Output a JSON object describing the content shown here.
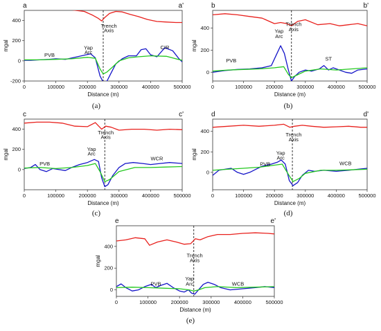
{
  "chart_data": [
    {
      "type": "line",
      "caption": "(a)",
      "profile_start": "a",
      "profile_end": "a'",
      "xlabel": "Distance (m)",
      "ylabel": "mgal",
      "xlim": [
        0,
        500000
      ],
      "ylim": [
        -200,
        500
      ],
      "xticks": [
        0,
        100000,
        200000,
        300000,
        400000,
        500000
      ],
      "yticks": [
        -200,
        0,
        200,
        400
      ],
      "trench_x": 250000,
      "series": [
        {
          "color": "#e8201c",
          "x": [
            0,
            50000,
            100000,
            150000,
            190000,
            215000,
            235000,
            245000,
            255000,
            270000,
            290000,
            310000,
            335000,
            360000,
            390000,
            420000,
            450000,
            480000,
            500000
          ],
          "y": [
            510,
            510,
            505,
            505,
            490,
            455,
            420,
            395,
            430,
            470,
            490,
            485,
            460,
            440,
            410,
            390,
            385,
            380,
            380
          ]
        },
        {
          "color": "#1414c8",
          "x": [
            0,
            20000,
            50000,
            80000,
            100000,
            130000,
            160000,
            190000,
            210000,
            225000,
            240000,
            250000,
            262000,
            275000,
            290000,
            310000,
            330000,
            355000,
            370000,
            385000,
            400000,
            420000,
            445000,
            470000,
            490000,
            500000
          ],
          "y": [
            5,
            5,
            10,
            15,
            20,
            15,
            35,
            55,
            70,
            30,
            -150,
            -210,
            -200,
            -120,
            -30,
            20,
            50,
            50,
            110,
            120,
            60,
            40,
            130,
            100,
            20,
            -10
          ]
        },
        {
          "color": "#22c81e",
          "x": [
            0,
            50000,
            100000,
            150000,
            200000,
            225000,
            240000,
            250000,
            262000,
            280000,
            300000,
            330000,
            360000,
            400000,
            450000,
            480000,
            500000
          ],
          "y": [
            10,
            10,
            15,
            20,
            35,
            25,
            -80,
            -130,
            -110,
            -60,
            0,
            30,
            40,
            50,
            45,
            20,
            5
          ]
        }
      ],
      "annotations": [
        {
          "text": "PVB",
          "x": 80000,
          "y": 40
        },
        {
          "text": "Yap",
          "x": 203000,
          "y": 112
        },
        {
          "text": "Arc",
          "x": 203000,
          "y": 68
        },
        {
          "text": "Trench",
          "x": 268000,
          "y": 330
        },
        {
          "text": "Axis",
          "x": 268000,
          "y": 285
        },
        {
          "text": "CIR",
          "x": 445000,
          "y": 115
        }
      ]
    },
    {
      "type": "line",
      "caption": "(b)",
      "profile_start": "b",
      "profile_end": "b'",
      "xlabel": "Distance (m)",
      "ylabel": "mgal",
      "xlim": [
        0,
        500000
      ],
      "ylim": [
        -80,
        560
      ],
      "xticks": [
        0,
        100000,
        200000,
        300000,
        400000,
        500000
      ],
      "yticks": [
        0,
        200,
        400
      ],
      "trench_x": 255000,
      "series": [
        {
          "color": "#e8201c",
          "x": [
            0,
            40000,
            80000,
            120000,
            160000,
            200000,
            220000,
            240000,
            255000,
            275000,
            300000,
            340000,
            380000,
            410000,
            440000,
            470000,
            500000
          ],
          "y": [
            520,
            530,
            520,
            505,
            490,
            440,
            450,
            440,
            420,
            460,
            475,
            430,
            440,
            420,
            430,
            440,
            420
          ]
        },
        {
          "color": "#1414c8",
          "x": [
            0,
            40000,
            80000,
            120000,
            160000,
            190000,
            205000,
            220000,
            232000,
            245000,
            255000,
            265000,
            280000,
            300000,
            320000,
            345000,
            360000,
            375000,
            390000,
            410000,
            430000,
            450000,
            470000,
            500000
          ],
          "y": [
            0,
            15,
            25,
            30,
            40,
            60,
            150,
            240,
            170,
            20,
            -80,
            -40,
            0,
            20,
            10,
            30,
            60,
            20,
            40,
            20,
            0,
            -10,
            20,
            30
          ]
        },
        {
          "color": "#22c81e",
          "x": [
            0,
            50000,
            100000,
            150000,
            200000,
            230000,
            245000,
            255000,
            270000,
            300000,
            350000,
            400000,
            450000,
            500000
          ],
          "y": [
            10,
            20,
            25,
            30,
            40,
            50,
            -20,
            -50,
            -30,
            10,
            30,
            20,
            30,
            40
          ]
        }
      ],
      "annotations": [
        {
          "text": "PVB",
          "x": 60000,
          "y": 90
        },
        {
          "text": "Yap",
          "x": 215000,
          "y": 355
        },
        {
          "text": "Arc",
          "x": 215000,
          "y": 310
        },
        {
          "text": "Trench",
          "x": 262000,
          "y": 418
        },
        {
          "text": "Axis",
          "x": 262000,
          "y": 373
        },
        {
          "text": "ST",
          "x": 375000,
          "y": 105
        }
      ]
    },
    {
      "type": "line",
      "caption": "(c)",
      "profile_start": "c",
      "profile_end": "c'",
      "xlabel": "Distance (m)",
      "ylabel": "mgal",
      "xlim": [
        0,
        500000
      ],
      "ylim": [
        -200,
        500
      ],
      "xticks": [
        0,
        100000,
        200000,
        300000,
        400000,
        500000
      ],
      "yticks": [
        0,
        200,
        400
      ],
      "trench_x": 255000,
      "series": [
        {
          "color": "#e8201c",
          "x": [
            0,
            40000,
            80000,
            120000,
            160000,
            200000,
            225000,
            245000,
            258000,
            275000,
            300000,
            340000,
            380000,
            420000,
            460000,
            500000
          ],
          "y": [
            460,
            470,
            470,
            460,
            430,
            425,
            465,
            400,
            430,
            420,
            390,
            400,
            400,
            390,
            400,
            395
          ]
        },
        {
          "color": "#1414c8",
          "x": [
            0,
            20000,
            35000,
            50000,
            70000,
            90000,
            110000,
            130000,
            150000,
            175000,
            200000,
            222000,
            235000,
            245000,
            255000,
            265000,
            280000,
            300000,
            320000,
            345000,
            375000,
            400000,
            430000,
            460000,
            500000
          ],
          "y": [
            10,
            20,
            50,
            0,
            -20,
            10,
            0,
            -10,
            20,
            50,
            70,
            100,
            80,
            -80,
            -170,
            -150,
            -60,
            20,
            60,
            70,
            60,
            50,
            60,
            70,
            60
          ]
        },
        {
          "color": "#22c81e",
          "x": [
            0,
            50000,
            100000,
            150000,
            200000,
            225000,
            240000,
            255000,
            270000,
            300000,
            350000,
            400000,
            450000,
            500000
          ],
          "y": [
            15,
            20,
            10,
            20,
            40,
            60,
            -20,
            -120,
            -100,
            -20,
            20,
            20,
            25,
            30
          ]
        }
      ],
      "annotations": [
        {
          "text": "PVB",
          "x": 65000,
          "y": 40
        },
        {
          "text": "Yap",
          "x": 213000,
          "y": 185
        },
        {
          "text": "Arc",
          "x": 213000,
          "y": 140
        },
        {
          "text": "Trench",
          "x": 258000,
          "y": 350
        },
        {
          "text": "Axis",
          "x": 258000,
          "y": 305
        },
        {
          "text": "WCR",
          "x": 420000,
          "y": 90
        }
      ]
    },
    {
      "type": "line",
      "caption": "(d)",
      "profile_start": "d",
      "profile_end": "d'",
      "xlabel": "Distance (m)",
      "ylabel": "mgal",
      "xlim": [
        0,
        500000
      ],
      "ylim": [
        -170,
        520
      ],
      "xticks": [
        0,
        100000,
        200000,
        300000,
        400000,
        500000
      ],
      "yticks": [
        0,
        200,
        400
      ],
      "trench_x": 258000,
      "series": [
        {
          "color": "#e8201c",
          "x": [
            0,
            50000,
            100000,
            150000,
            200000,
            230000,
            250000,
            265000,
            290000,
            320000,
            360000,
            400000,
            440000,
            480000,
            500000
          ],
          "y": [
            440,
            450,
            460,
            450,
            460,
            470,
            440,
            450,
            460,
            450,
            440,
            445,
            450,
            440,
            440
          ]
        },
        {
          "color": "#1414c8",
          "x": [
            0,
            20000,
            40000,
            60000,
            80000,
            100000,
            120000,
            140000,
            160000,
            190000,
            210000,
            222000,
            235000,
            248000,
            260000,
            275000,
            290000,
            310000,
            330000,
            360000,
            400000,
            440000,
            470000,
            500000
          ],
          "y": [
            -30,
            20,
            30,
            40,
            0,
            -20,
            0,
            30,
            60,
            80,
            100,
            120,
            80,
            -80,
            -130,
            -100,
            -30,
            20,
            10,
            20,
            10,
            20,
            30,
            40
          ]
        },
        {
          "color": "#22c81e",
          "x": [
            0,
            50000,
            100000,
            150000,
            200000,
            225000,
            245000,
            260000,
            280000,
            300000,
            350000,
            400000,
            450000,
            500000
          ],
          "y": [
            20,
            30,
            40,
            50,
            70,
            80,
            -20,
            -90,
            -60,
            -10,
            20,
            20,
            25,
            30
          ]
        }
      ],
      "annotations": [
        {
          "text": "PVB",
          "x": 170000,
          "y": 65
        },
        {
          "text": "Yap",
          "x": 220000,
          "y": 170
        },
        {
          "text": "Arc",
          "x": 220000,
          "y": 125
        },
        {
          "text": "Trench",
          "x": 262000,
          "y": 350
        },
        {
          "text": "Axis",
          "x": 262000,
          "y": 305
        },
        {
          "text": "WCB",
          "x": 430000,
          "y": 70
        }
      ]
    },
    {
      "type": "line",
      "caption": "(e)",
      "profile_start": "e",
      "profile_end": "e'",
      "xlabel": "Distance (m)",
      "ylabel": "mgal",
      "xlim": [
        0,
        500000
      ],
      "ylim": [
        -60,
        590
      ],
      "xticks": [
        0,
        100000,
        200000,
        300000,
        400000,
        500000
      ],
      "yticks": [
        0,
        200,
        400
      ],
      "trench_x": 245000,
      "series": [
        {
          "color": "#e8201c",
          "x": [
            0,
            30000,
            60000,
            90000,
            105000,
            130000,
            160000,
            190000,
            215000,
            235000,
            250000,
            265000,
            290000,
            320000,
            360000,
            400000,
            440000,
            480000,
            500000
          ],
          "y": [
            450,
            460,
            480,
            470,
            410,
            440,
            460,
            440,
            420,
            425,
            470,
            460,
            490,
            510,
            510,
            520,
            525,
            520,
            515
          ]
        },
        {
          "color": "#1414c8",
          "x": [
            0,
            15000,
            30000,
            50000,
            70000,
            90000,
            110000,
            125000,
            140000,
            160000,
            180000,
            200000,
            215000,
            228000,
            238000,
            248000,
            260000,
            275000,
            290000,
            310000,
            330000,
            360000,
            400000,
            440000,
            470000,
            500000
          ],
          "y": [
            30,
            55,
            20,
            -10,
            0,
            30,
            50,
            20,
            40,
            60,
            20,
            -10,
            -20,
            0,
            -30,
            -40,
            0,
            50,
            70,
            50,
            20,
            0,
            10,
            20,
            30,
            20
          ]
        },
        {
          "color": "#22c81e",
          "x": [
            0,
            50000,
            100000,
            150000,
            200000,
            230000,
            245000,
            260000,
            280000,
            320000,
            380000,
            440000,
            500000
          ],
          "y": [
            20,
            25,
            20,
            15,
            10,
            0,
            -10,
            0,
            20,
            30,
            20,
            25,
            30
          ]
        }
      ],
      "annotations": [
        {
          "text": "PVB",
          "x": 125000,
          "y": 40
        },
        {
          "text": "Yap",
          "x": 232000,
          "y": 85
        },
        {
          "text": "Arc",
          "x": 232000,
          "y": 40
        },
        {
          "text": "Trench",
          "x": 248000,
          "y": 300
        },
        {
          "text": "Axis",
          "x": 248000,
          "y": 255
        },
        {
          "text": "WCB",
          "x": 385000,
          "y": 40
        }
      ]
    }
  ]
}
